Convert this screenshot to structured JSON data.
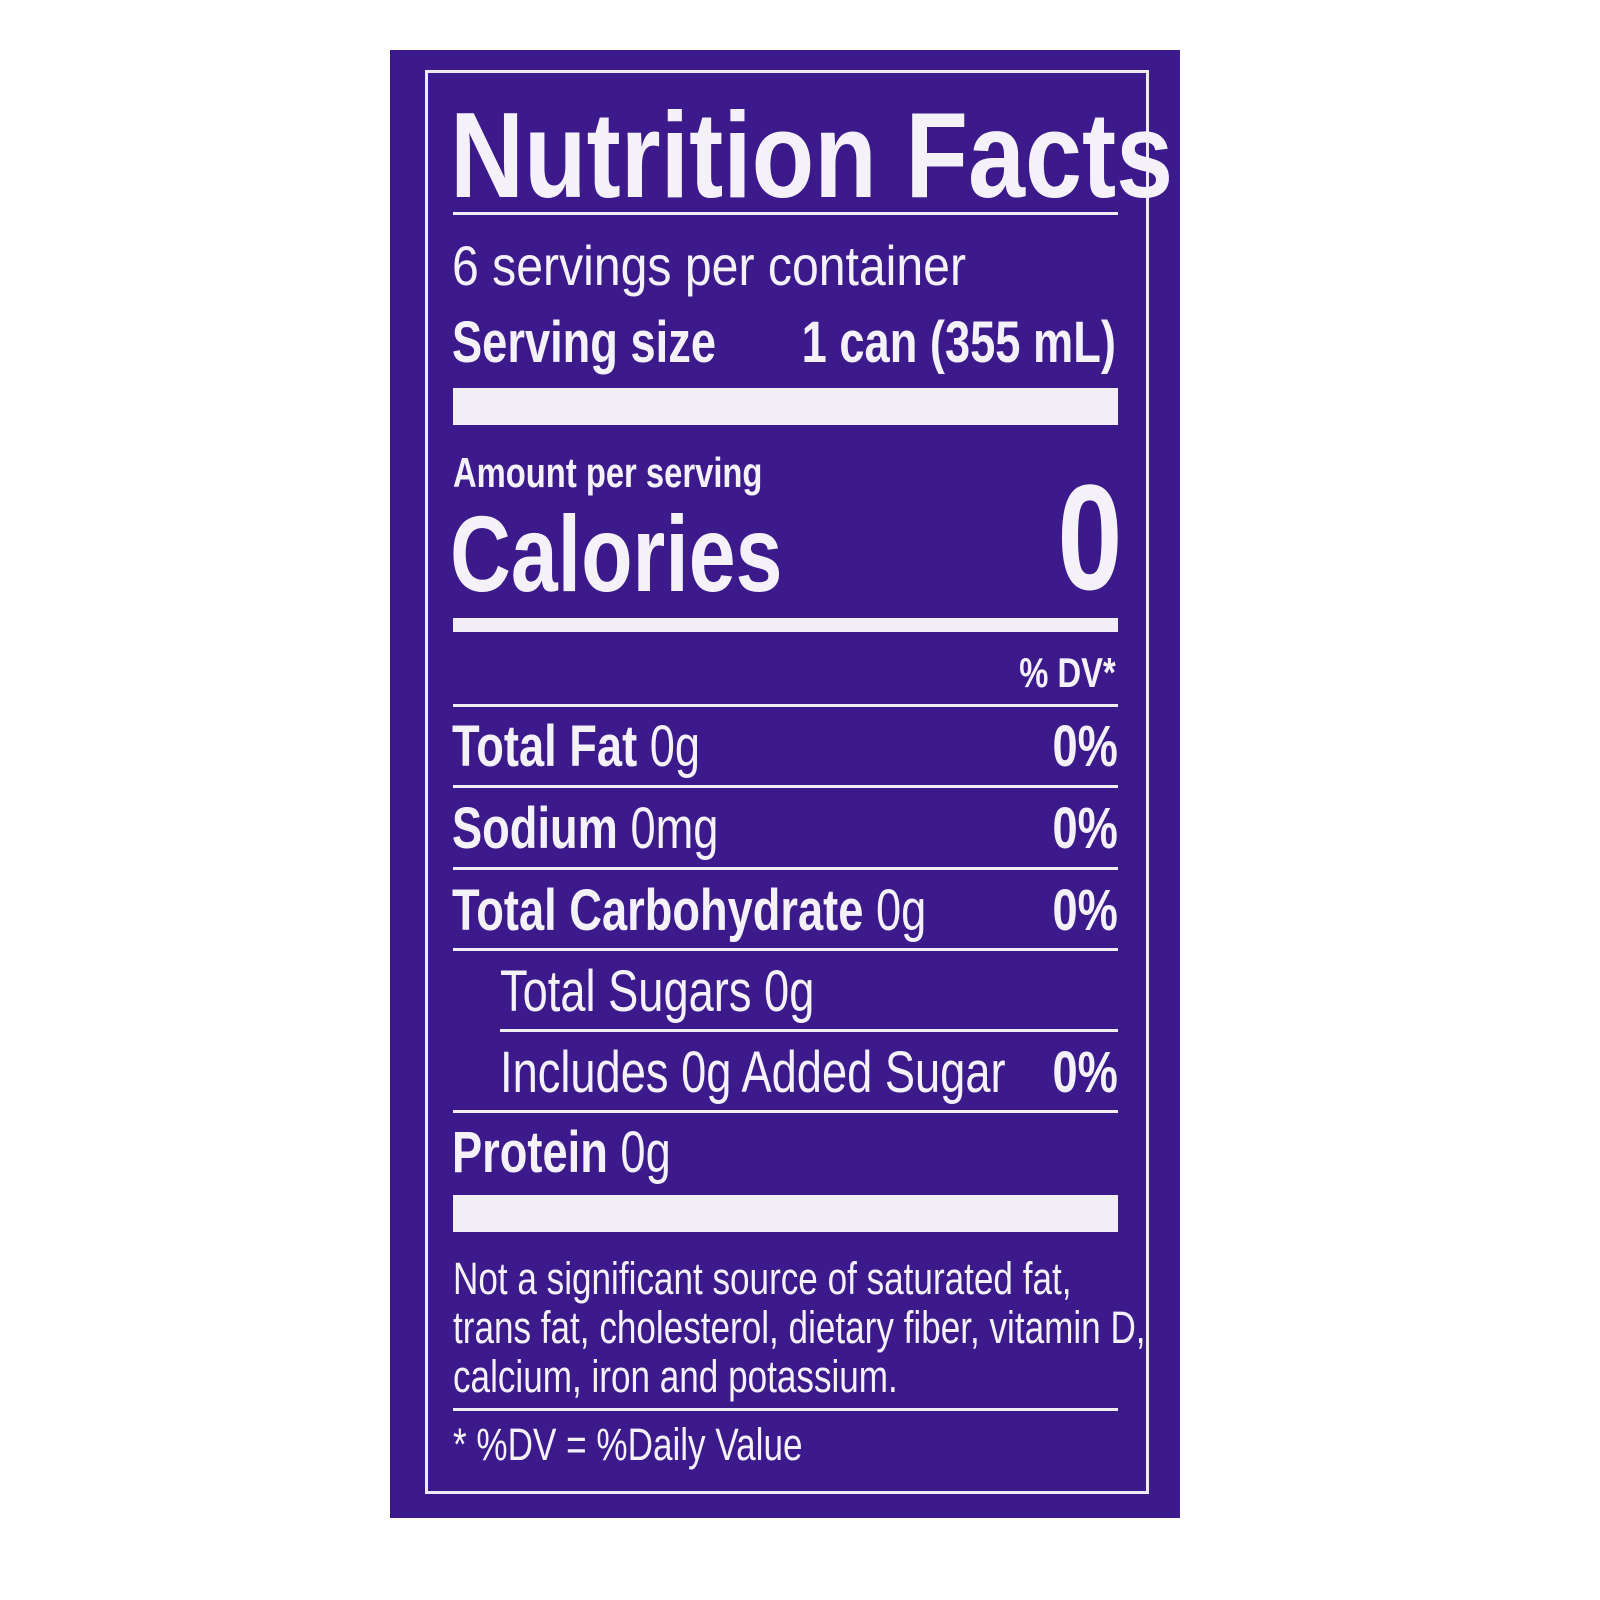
{
  "label": {
    "title": "Nutrition Facts",
    "servings_per_container": "6 servings per container",
    "serving_size_label": "Serving size",
    "serving_size_value": "1 can (355 mL)",
    "amount_per_serving": "Amount per serving",
    "calories_label": "Calories",
    "calories_value": "0",
    "dv_header": "% DV*",
    "nutrients": [
      {
        "name": "Total Fat",
        "amount": "0g",
        "dv": "0%"
      },
      {
        "name": "Sodium",
        "amount": "0mg",
        "dv": "0%"
      },
      {
        "name": "Total Carbohydrate",
        "amount": "0g",
        "dv": "0%"
      },
      {
        "name": "Total Sugars 0g",
        "amount": "",
        "dv": ""
      },
      {
        "name": "Includes 0g Added Sugar",
        "amount": "",
        "dv": "0%"
      },
      {
        "name": "Protein",
        "amount": "0g",
        "dv": ""
      }
    ],
    "footnote_lines": [
      "Not a significant source of saturated fat,",
      "trans fat, cholesterol, dietary fiber, vitamin D,",
      "calcium, iron and potassium."
    ],
    "dv_footnote": "* %DV = %Daily Value"
  },
  "colors": {
    "background": "#3d1a8b",
    "text": "#f4f2f8"
  }
}
